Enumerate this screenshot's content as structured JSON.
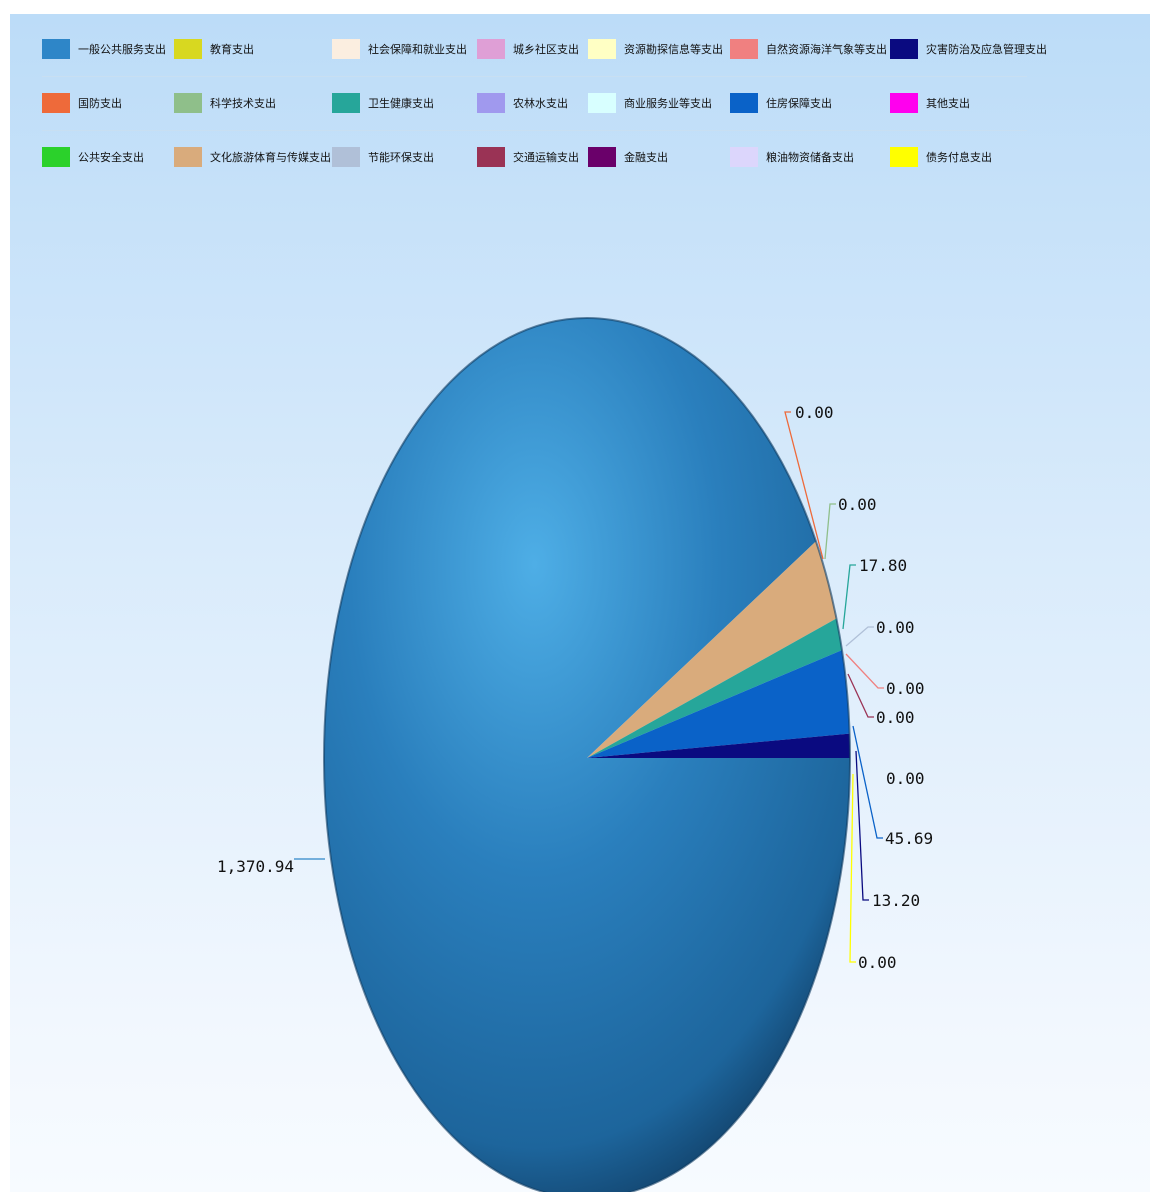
{
  "chart_data": {
    "type": "pie",
    "legend_position": "top",
    "series": [
      {
        "name": "一般公共服务支出",
        "value": 1370.94,
        "label": "1,370.94",
        "color": "#2e86c8"
      },
      {
        "name": "教育支出",
        "value": 0.0,
        "label": "",
        "color": "#d8d820"
      },
      {
        "name": "社会保障和就业支出",
        "value": 0.0,
        "label": "",
        "color": "#fbeee0"
      },
      {
        "name": "城乡社区支出",
        "value": 0.0,
        "label": "",
        "color": "#df9fd6"
      },
      {
        "name": "资源勘探信息等支出",
        "value": 0.0,
        "label": "",
        "color": "#ffffc4"
      },
      {
        "name": "自然资源海洋气象等支出",
        "value": 0.0,
        "label": "0.00",
        "color": "#f08080"
      },
      {
        "name": "灾害防治及应急管理支出",
        "value": 13.2,
        "label": "13.20",
        "color": "#0a0a80"
      },
      {
        "name": "国防支出",
        "value": 0.0,
        "label": "0.00",
        "color": "#ee6a3a"
      },
      {
        "name": "科学技术支出",
        "value": 0.0,
        "label": "0.00",
        "color": "#8fbf8a"
      },
      {
        "name": "卫生健康支出",
        "value": 17.8,
        "label": "17.80",
        "color": "#26a69a"
      },
      {
        "name": "农林水支出",
        "value": 0.0,
        "label": "",
        "color": "#a099ee"
      },
      {
        "name": "商业服务业等支出",
        "value": 0.0,
        "label": "",
        "color": "#d8ffff"
      },
      {
        "name": "住房保障支出",
        "value": 45.69,
        "label": "45.69",
        "color": "#0a62c8"
      },
      {
        "name": "其他支出",
        "value": 0.0,
        "label": "",
        "color": "#ff00ee"
      },
      {
        "name": "公共安全支出",
        "value": 0.0,
        "label": "0.00",
        "color": "#2bd12b"
      },
      {
        "name": "文化旅游体育与传媒支出",
        "value": 45.69,
        "label": "",
        "color": "#d9ab7c"
      },
      {
        "name": "节能环保支出",
        "value": 0.0,
        "label": "0.00",
        "color": "#b0c0d8"
      },
      {
        "name": "交通运输支出",
        "value": 0.0,
        "label": "0.00",
        "color": "#9a3355"
      },
      {
        "name": "金融支出",
        "value": 0.0,
        "label": "",
        "color": "#6a006a"
      },
      {
        "name": "粮油物资储备支出",
        "value": 0.0,
        "label": "",
        "color": "#dcd6fc"
      },
      {
        "name": "债务付息支出",
        "value": 0.0,
        "label": "0.00",
        "color": "#ffff00"
      }
    ]
  }
}
